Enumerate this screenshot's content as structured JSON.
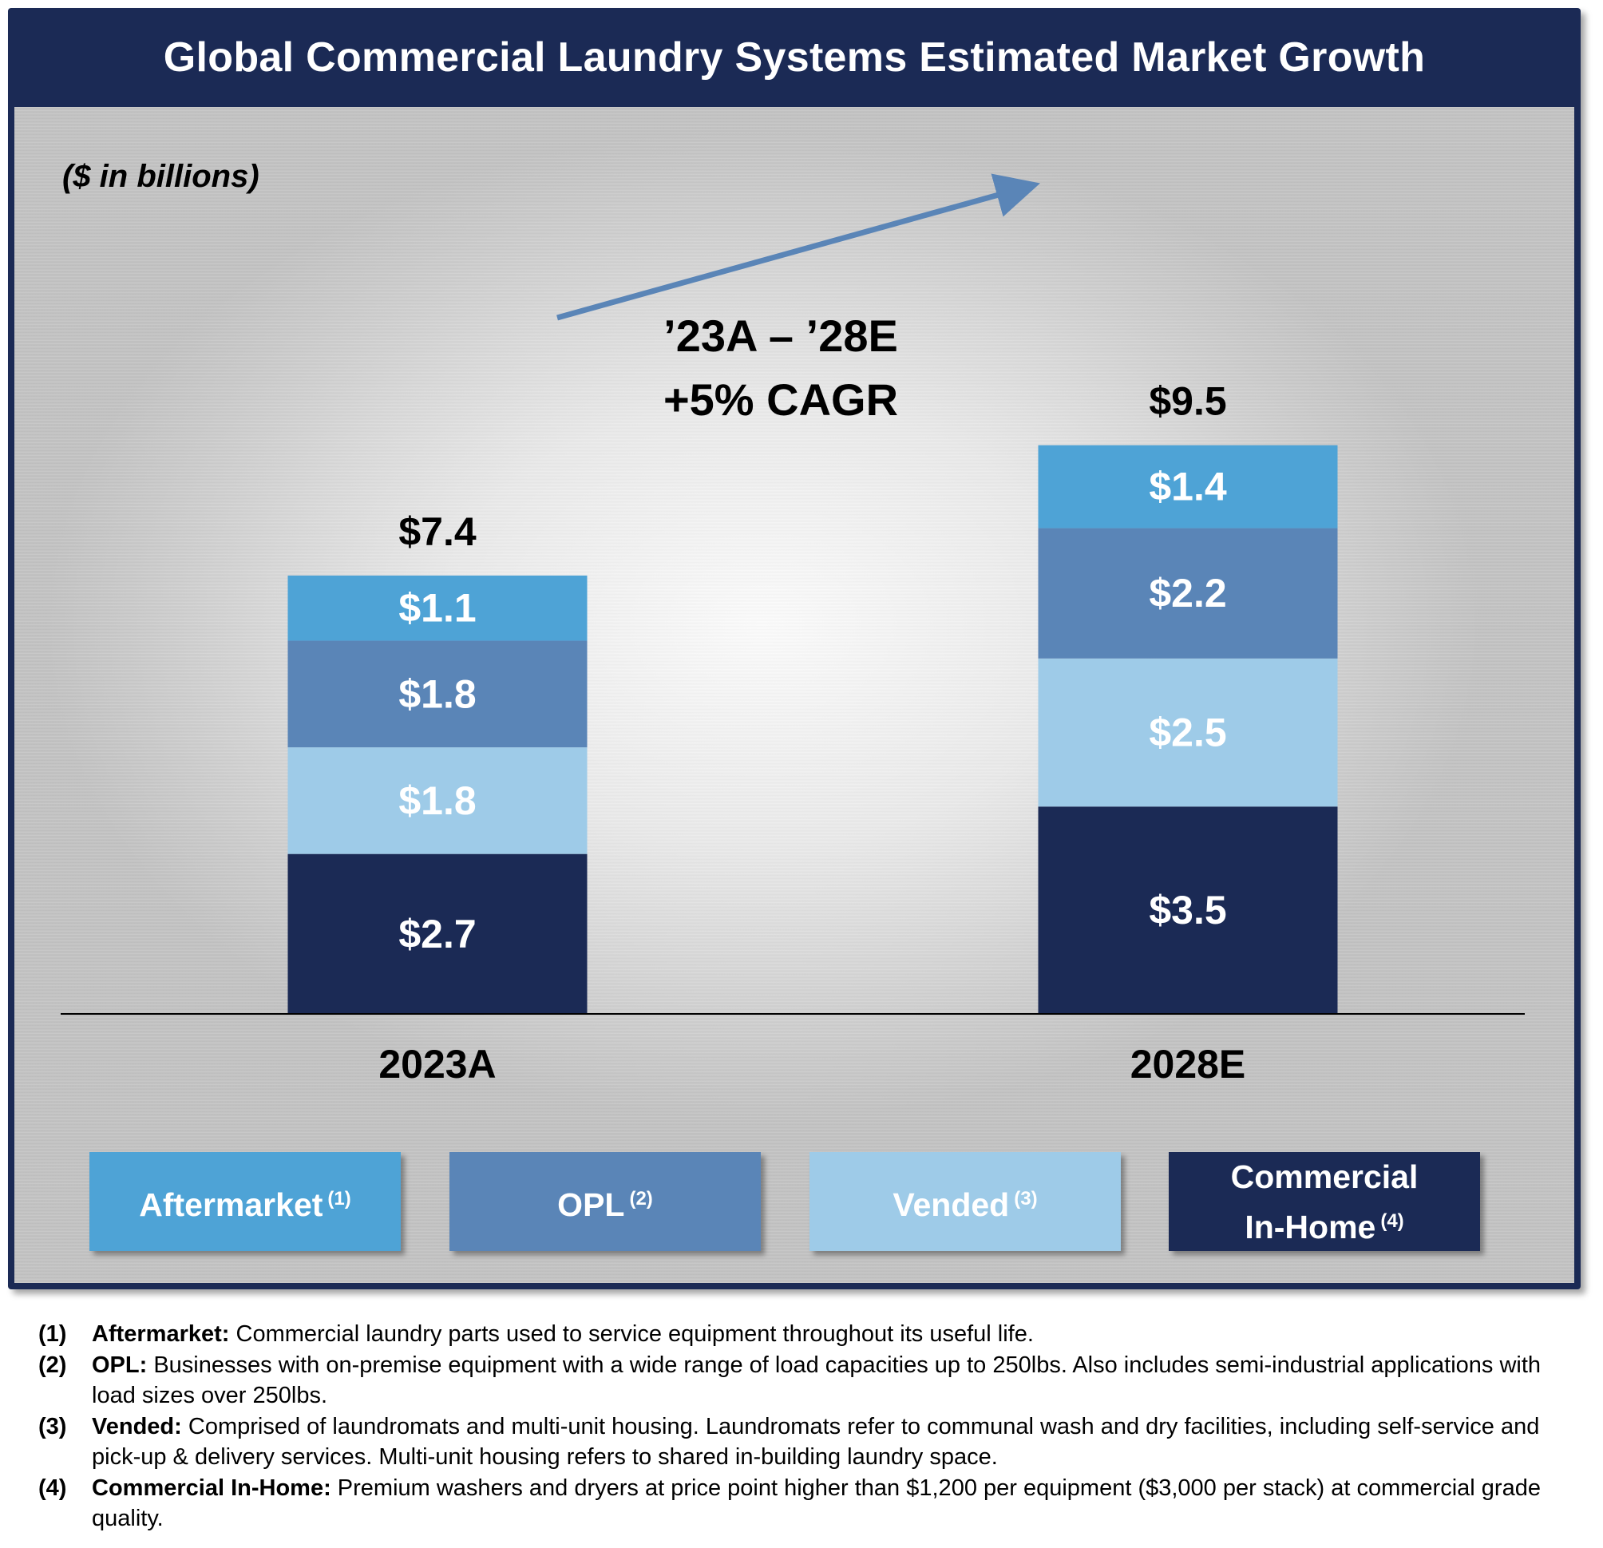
{
  "title": "Global Commercial Laundry Systems Estimated Market Growth",
  "colors": {
    "frame": "#1b2a55",
    "aftermarket": "#4ea3d6",
    "opl": "#5a85b7",
    "vended": "#9ecbe8",
    "commercial_in_home": "#1b2a55",
    "arrow": "#5a85b7"
  },
  "chart_data": {
    "type": "bar",
    "stacked": true,
    "unit_label": "($ in billions)",
    "categories": [
      "2023A",
      "2028E"
    ],
    "series": [
      {
        "name": "Commercial In-Home",
        "values": [
          2.7,
          3.5
        ],
        "labels": [
          "$2.7",
          "$3.5"
        ],
        "color": "#1b2a55"
      },
      {
        "name": "Vended",
        "values": [
          1.8,
          2.5
        ],
        "labels": [
          "$1.8",
          "$2.5"
        ],
        "color": "#9ecbe8"
      },
      {
        "name": "OPL",
        "values": [
          1.8,
          2.2
        ],
        "labels": [
          "$1.8",
          "$2.2"
        ],
        "color": "#5a85b7"
      },
      {
        "name": "Aftermarket",
        "values": [
          1.1,
          1.4
        ],
        "labels": [
          "$1.1",
          "$1.4"
        ],
        "color": "#4ea3d6"
      }
    ],
    "totals": [
      7.4,
      9.5
    ],
    "total_labels": [
      "$7.4",
      "$9.5"
    ],
    "annotation": {
      "line1": "’23A – ’28E",
      "line2": "+5% CAGR",
      "cagr_percent": 5
    },
    "ylim": [
      0,
      10
    ]
  },
  "legend": [
    {
      "label": "Aftermarket",
      "note": "(1)"
    },
    {
      "label": "OPL",
      "note": "(2)"
    },
    {
      "label": "Vended",
      "note": "(3)"
    },
    {
      "label_line1": "Commercial",
      "label_line2": "In-Home",
      "note": "(4)"
    }
  ],
  "footnotes": [
    {
      "num": "(1)",
      "term": "Aftermarket:",
      "text": " Commercial laundry parts used to service equipment throughout its useful life."
    },
    {
      "num": "(2)",
      "term": "OPL:",
      "text": " Businesses with on-premise equipment with a wide range of load capacities up to 250lbs. Also includes semi-industrial applications with load sizes over 250lbs."
    },
    {
      "num": "(3)",
      "term": "Vended:",
      "text": " Comprised of laundromats and multi-unit housing. Laundromats refer to communal wash and dry facilities, including self-service and pick-up & delivery services. Multi-unit housing refers to shared in-building laundry space."
    },
    {
      "num": "(4)",
      "term": "Commercial In-Home:",
      "text": " Premium washers and dryers at price point higher than $1,200 per equipment ($3,000 per stack) at commercial grade quality."
    }
  ]
}
